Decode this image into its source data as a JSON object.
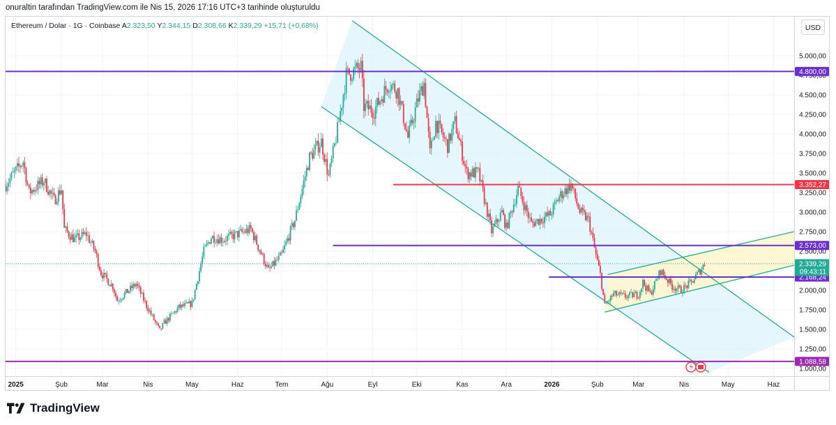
{
  "header": {
    "attribution": "onuraltin tarafından TradingView.com ile Nis 15, 2026 17:16 UTC+3 tarihinde oluşturuldu"
  },
  "legend": {
    "symbol": "Ethereum / Dolar · 1G · Coinbase",
    "open_label": "A",
    "open": "2.323,50",
    "high_label": "Y",
    "high": "2.344,15",
    "low_label": "D",
    "low": "2.308,66",
    "close_label": "K",
    "close": "2.339,29",
    "change": "+15,71 (+0,68%)"
  },
  "currency": "USD",
  "footer": {
    "brand": "TradingView"
  },
  "colors": {
    "up": "#22ab94",
    "down": "#f23645",
    "channel_line": "#26a69a",
    "channel_fill": "#e1f5fb",
    "wedge_line": "#22ab94",
    "wedge_fill": "#fdf6cf",
    "level_purple": "#6a2fcf",
    "level_red": "#f23645",
    "level_magenta": "#9c27b0",
    "grid": "#f0f3fa"
  },
  "chart_data": {
    "type": "candlestick",
    "title": "Ethereum / Dolar · 1G · Coinbase",
    "y_unit": "USD",
    "ylim": [
      900,
      5500
    ],
    "y_ticks": [
      "1.000,00",
      "1.250,00",
      "1.500,00",
      "1.750,00",
      "2.000,00",
      "2.250,00",
      "2.500,00",
      "2.750,00",
      "3.000,00",
      "3.250,00",
      "3.500,00",
      "3.750,00",
      "4.000,00",
      "4.250,00",
      "4.500,00",
      "4.750,00",
      "5.000,00"
    ],
    "y_tick_values": [
      1000,
      1250,
      1500,
      1750,
      2000,
      2250,
      2500,
      2750,
      3000,
      3250,
      3500,
      3750,
      4000,
      4250,
      4500,
      4750,
      5000
    ],
    "x_ticks": [
      "2025",
      "Şub",
      "Mar",
      "Nis",
      "May",
      "Haz",
      "Tem",
      "Ağu",
      "Eyl",
      "Eki",
      "Kas",
      "Ara",
      "2026",
      "Şub",
      "Mar",
      "Nis",
      "May",
      "Haz"
    ],
    "x_tick_dates": [
      "2025-01-01",
      "2025-02-01",
      "2025-03-01",
      "2025-04-01",
      "2025-05-01",
      "2025-06-01",
      "2025-07-01",
      "2025-08-01",
      "2025-09-01",
      "2025-10-01",
      "2025-11-01",
      "2025-12-01",
      "2026-01-01",
      "2026-02-01",
      "2026-03-01",
      "2026-04-01",
      "2026-05-01",
      "2026-06-01"
    ],
    "x_range": [
      "2024-12-25",
      "2026-06-15"
    ],
    "price_path": [
      [
        "2024-12-25",
        3350
      ],
      [
        "2025-01-06",
        3650
      ],
      [
        "2025-01-10",
        3250
      ],
      [
        "2025-01-20",
        3400
      ],
      [
        "2025-01-27",
        3150
      ],
      [
        "2025-02-01",
        3300
      ],
      [
        "2025-02-03",
        2780
      ],
      [
        "2025-02-10",
        2650
      ],
      [
        "2025-02-18",
        2720
      ],
      [
        "2025-02-24",
        2500
      ],
      [
        "2025-02-28",
        2220
      ],
      [
        "2025-03-08",
        2050
      ],
      [
        "2025-03-11",
        1870
      ],
      [
        "2025-03-24",
        2080
      ],
      [
        "2025-03-31",
        1800
      ],
      [
        "2025-04-09",
        1480
      ],
      [
        "2025-04-12",
        1580
      ],
      [
        "2025-04-22",
        1780
      ],
      [
        "2025-05-01",
        1830
      ],
      [
        "2025-05-09",
        2500
      ],
      [
        "2025-05-14",
        2680
      ],
      [
        "2025-05-22",
        2650
      ],
      [
        "2025-06-10",
        2780
      ],
      [
        "2025-06-22",
        2250
      ],
      [
        "2025-07-01",
        2450
      ],
      [
        "2025-07-10",
        2900
      ],
      [
        "2025-07-20",
        3700
      ],
      [
        "2025-07-28",
        3900
      ],
      [
        "2025-08-02",
        3450
      ],
      [
        "2025-08-08",
        4050
      ],
      [
        "2025-08-14",
        4750
      ],
      [
        "2025-08-24",
        4850
      ],
      [
        "2025-08-26",
        4350
      ],
      [
        "2025-09-02",
        4300
      ],
      [
        "2025-09-12",
        4650
      ],
      [
        "2025-09-18",
        4550
      ],
      [
        "2025-09-25",
        3950
      ],
      [
        "2025-10-02",
        4450
      ],
      [
        "2025-10-06",
        4650
      ],
      [
        "2025-10-10",
        3750
      ],
      [
        "2025-10-14",
        4150
      ],
      [
        "2025-10-22",
        3850
      ],
      [
        "2025-10-27",
        4150
      ],
      [
        "2025-11-04",
        3500
      ],
      [
        "2025-11-12",
        3500
      ],
      [
        "2025-11-21",
        2750
      ],
      [
        "2025-11-28",
        3000
      ],
      [
        "2025-12-01",
        2800
      ],
      [
        "2025-12-09",
        3300
      ],
      [
        "2025-12-18",
        2850
      ],
      [
        "2025-12-31",
        2970
      ],
      [
        "2026-01-06",
        3200
      ],
      [
        "2026-01-14",
        3350
      ],
      [
        "2026-01-20",
        3000
      ],
      [
        "2026-01-26",
        2900
      ],
      [
        "2026-01-31",
        2450
      ],
      [
        "2026-02-03",
        2200
      ],
      [
        "2026-02-06",
        1800
      ],
      [
        "2026-02-12",
        1950
      ],
      [
        "2026-02-20",
        1920
      ],
      [
        "2026-03-01",
        1950
      ],
      [
        "2026-03-04",
        2100
      ],
      [
        "2026-03-09",
        1950
      ],
      [
        "2026-03-16",
        2250
      ],
      [
        "2026-03-24",
        2050
      ],
      [
        "2026-03-30",
        2000
      ],
      [
        "2026-04-06",
        2100
      ],
      [
        "2026-04-13",
        2280
      ],
      [
        "2026-04-15",
        2339.29
      ]
    ],
    "horizontal_levels": [
      {
        "value": 4800.0,
        "label": "4.800,00",
        "color": "#6a2fcf",
        "start": "2024-12-25"
      },
      {
        "value": 3352.27,
        "label": "3.352,27",
        "color": "#f23645",
        "start": "2025-09-15"
      },
      {
        "value": 2573.0,
        "label": "2.573,00",
        "color": "#6a2fcf",
        "start": "2025-08-05"
      },
      {
        "value": 2168.24,
        "label": "2.168,24",
        "color": "#6a2fcf",
        "start": "2025-12-30"
      },
      {
        "value": 1088.58,
        "label": "1.088,58",
        "color": "#9c27b0",
        "start": "2024-12-25"
      }
    ],
    "current_price": {
      "value": 2339.29,
      "label": "2.339,29",
      "countdown": "09:43:11",
      "color": "#22ab94"
    },
    "descending_channel": {
      "upper": [
        [
          "2025-08-18",
          5450
        ],
        [
          "2026-06-15",
          1400
        ]
      ],
      "lower": [
        [
          "2025-07-28",
          4350
        ],
        [
          "2026-04-18",
          950
        ]
      ]
    },
    "ascending_wedge": {
      "upper": [
        [
          "2026-02-08",
          2200
        ],
        [
          "2026-06-15",
          2750
        ]
      ],
      "lower": [
        [
          "2026-02-06",
          1720
        ],
        [
          "2026-06-15",
          2320
        ]
      ]
    }
  }
}
